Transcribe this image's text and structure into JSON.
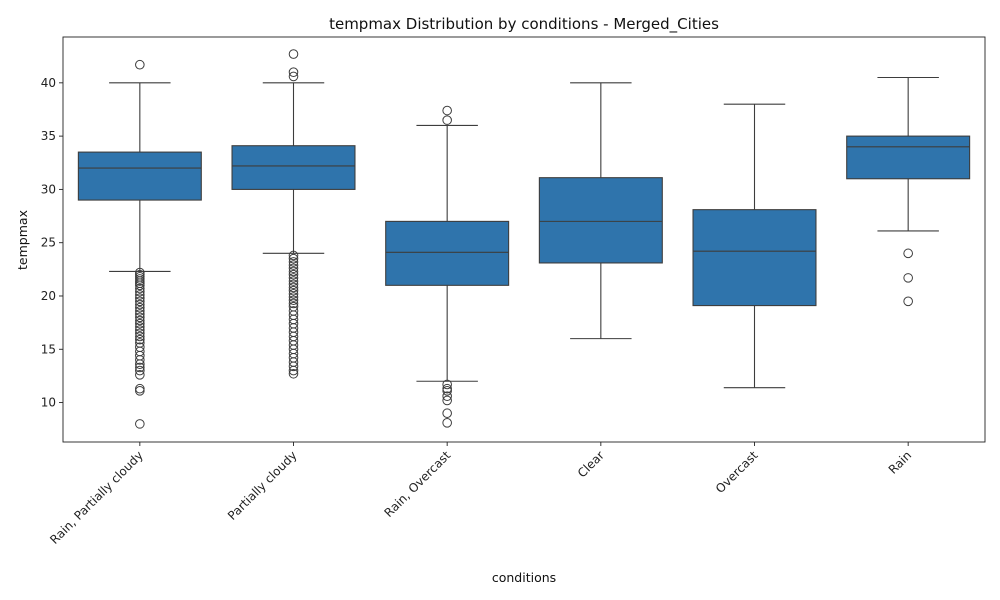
{
  "chart_data": {
    "type": "box",
    "title": "tempmax Distribution by conditions - Merged_Cities",
    "xlabel": "conditions",
    "ylabel": "tempmax",
    "ylim": [
      6.3,
      44.3
    ],
    "yticks": [
      10,
      15,
      20,
      25,
      30,
      35,
      40
    ],
    "grid": false,
    "colors": {
      "box_fill": "#2f74ac",
      "line": "#3d3d3d"
    },
    "categories": [
      "Rain, Partially cloudy",
      "Partially cloudy",
      "Rain, Overcast",
      "Clear",
      "Overcast",
      "Rain"
    ],
    "boxes": [
      {
        "category": "Rain, Partially cloudy",
        "whisker_low": 22.3,
        "q1": 29.0,
        "median": 32.0,
        "q3": 33.5,
        "whisker_high": 40.0,
        "outliers": [
          41.7,
          22.2,
          22.0,
          21.8,
          21.6,
          21.4,
          21.2,
          21.0,
          20.7,
          20.4,
          20.1,
          19.8,
          19.5,
          19.2,
          18.9,
          18.6,
          18.3,
          18.0,
          17.7,
          17.4,
          17.1,
          16.8,
          16.5,
          16.2,
          15.9,
          15.6,
          15.2,
          14.8,
          14.4,
          14.0,
          13.6,
          13.3,
          13.0,
          12.6,
          11.3,
          11.1,
          8.0
        ]
      },
      {
        "category": "Partially cloudy",
        "whisker_low": 24.0,
        "q1": 30.0,
        "median": 32.2,
        "q3": 34.1,
        "whisker_high": 40.0,
        "outliers": [
          42.7,
          41.0,
          40.6,
          23.8,
          23.5,
          23.2,
          22.9,
          22.6,
          22.3,
          22.0,
          21.7,
          21.4,
          21.1,
          20.8,
          20.5,
          20.2,
          19.9,
          19.6,
          19.3,
          19.0,
          18.6,
          18.2,
          17.8,
          17.4,
          17.0,
          16.6,
          16.2,
          15.8,
          15.4,
          15.0,
          14.6,
          14.2,
          13.8,
          13.4,
          13.0,
          12.7
        ]
      },
      {
        "category": "Rain, Overcast",
        "whisker_low": 12.0,
        "q1": 21.0,
        "median": 24.1,
        "q3": 27.0,
        "whisker_high": 36.0,
        "outliers": [
          37.4,
          36.5,
          11.7,
          11.3,
          11.1,
          10.6,
          10.2,
          9.0,
          8.1
        ]
      },
      {
        "category": "Clear",
        "whisker_low": 16.0,
        "q1": 23.1,
        "median": 27.0,
        "q3": 31.1,
        "whisker_high": 40.0,
        "outliers": []
      },
      {
        "category": "Overcast",
        "whisker_low": 11.4,
        "q1": 19.1,
        "median": 24.2,
        "q3": 28.1,
        "whisker_high": 38.0,
        "outliers": []
      },
      {
        "category": "Rain",
        "whisker_low": 26.1,
        "q1": 31.0,
        "median": 34.0,
        "q3": 35.0,
        "whisker_high": 40.5,
        "outliers": [
          24.0,
          21.7,
          19.5
        ]
      }
    ]
  }
}
